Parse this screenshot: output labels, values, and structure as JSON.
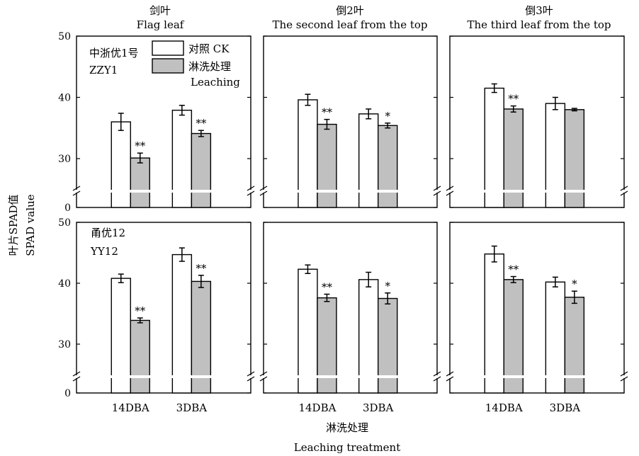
{
  "figure": {
    "y_axis_title_cn": "叶片SPAD值",
    "y_axis_title_en": "SPAD value",
    "x_axis_title_cn": "淋洗处理",
    "x_axis_title_en": "Leaching treatment",
    "legend": {
      "ck": "对照  CK",
      "leaching_cn": "淋洗处理",
      "leaching_en": "Leaching"
    },
    "columns": [
      {
        "title_cn": "剑叶",
        "title_en": "Flag leaf"
      },
      {
        "title_cn": "倒2叶",
        "title_en": "The second leaf from the top"
      },
      {
        "title_cn": "倒3叶",
        "title_en": "The third leaf from the top"
      }
    ],
    "rows": [
      {
        "variety_cn": "中浙优1号",
        "variety_en": "ZZY1"
      },
      {
        "variety_cn": "甬优12",
        "variety_en": "YY12"
      }
    ],
    "colors": {
      "ck": "#ffffff",
      "leaching": "#c0c0c0",
      "axis": "#000000",
      "axis_break": "#ffffff"
    }
  },
  "chart_data": {
    "type": "bar",
    "categories": [
      "14DBA",
      "3DBA"
    ],
    "ylim": [
      0,
      50
    ],
    "axis_break": true,
    "yticks": [
      0,
      30,
      40,
      50
    ],
    "panels": [
      {
        "row": "ZZY1",
        "leaf": "Flag leaf",
        "series": [
          {
            "name": "对照  CK",
            "values": [
              36.0,
              37.9
            ],
            "errors": [
              1.4,
              0.8
            ],
            "marks": [
              "",
              ""
            ]
          },
          {
            "name": "淋洗处理 Leaching",
            "values": [
              30.1,
              34.1
            ],
            "errors": [
              0.8,
              0.5
            ],
            "marks": [
              "**",
              "**"
            ]
          }
        ]
      },
      {
        "row": "ZZY1",
        "leaf": "The second leaf from the top",
        "series": [
          {
            "name": "对照  CK",
            "values": [
              39.6,
              37.3
            ],
            "errors": [
              0.9,
              0.8
            ],
            "marks": [
              "",
              ""
            ]
          },
          {
            "name": "淋洗处理 Leaching",
            "values": [
              35.6,
              35.4
            ],
            "errors": [
              0.8,
              0.4
            ],
            "marks": [
              "**",
              "*"
            ]
          }
        ]
      },
      {
        "row": "ZZY1",
        "leaf": "The third leaf from the top",
        "series": [
          {
            "name": "对照  CK",
            "values": [
              41.5,
              39.0
            ],
            "errors": [
              0.7,
              1.0
            ],
            "marks": [
              "",
              ""
            ]
          },
          {
            "name": "淋洗处理 Leaching",
            "values": [
              38.1,
              38.0
            ],
            "errors": [
              0.5,
              0.2
            ],
            "marks": [
              "**",
              ""
            ]
          }
        ]
      },
      {
        "row": "YY12",
        "leaf": "Flag leaf",
        "series": [
          {
            "name": "对照  CK",
            "values": [
              40.8,
              44.7
            ],
            "errors": [
              0.7,
              1.1
            ],
            "marks": [
              "",
              ""
            ]
          },
          {
            "name": "淋洗处理 Leaching",
            "values": [
              33.9,
              40.3
            ],
            "errors": [
              0.4,
              1.0
            ],
            "marks": [
              "**",
              "**"
            ]
          }
        ]
      },
      {
        "row": "YY12",
        "leaf": "The second leaf from the top",
        "series": [
          {
            "name": "对照  CK",
            "values": [
              42.3,
              40.6
            ],
            "errors": [
              0.7,
              1.2
            ],
            "marks": [
              "",
              ""
            ]
          },
          {
            "name": "淋洗处理 Leaching",
            "values": [
              37.6,
              37.5
            ],
            "errors": [
              0.6,
              0.9
            ],
            "marks": [
              "**",
              "*"
            ]
          }
        ]
      },
      {
        "row": "YY12",
        "leaf": "The third leaf from the top",
        "series": [
          {
            "name": "对照  CK",
            "values": [
              44.8,
              40.2
            ],
            "errors": [
              1.3,
              0.8
            ],
            "marks": [
              "",
              ""
            ]
          },
          {
            "name": "淋洗处理 Leaching",
            "values": [
              40.6,
              37.7
            ],
            "errors": [
              0.5,
              1.0
            ],
            "marks": [
              "**",
              "*"
            ]
          }
        ]
      }
    ]
  }
}
